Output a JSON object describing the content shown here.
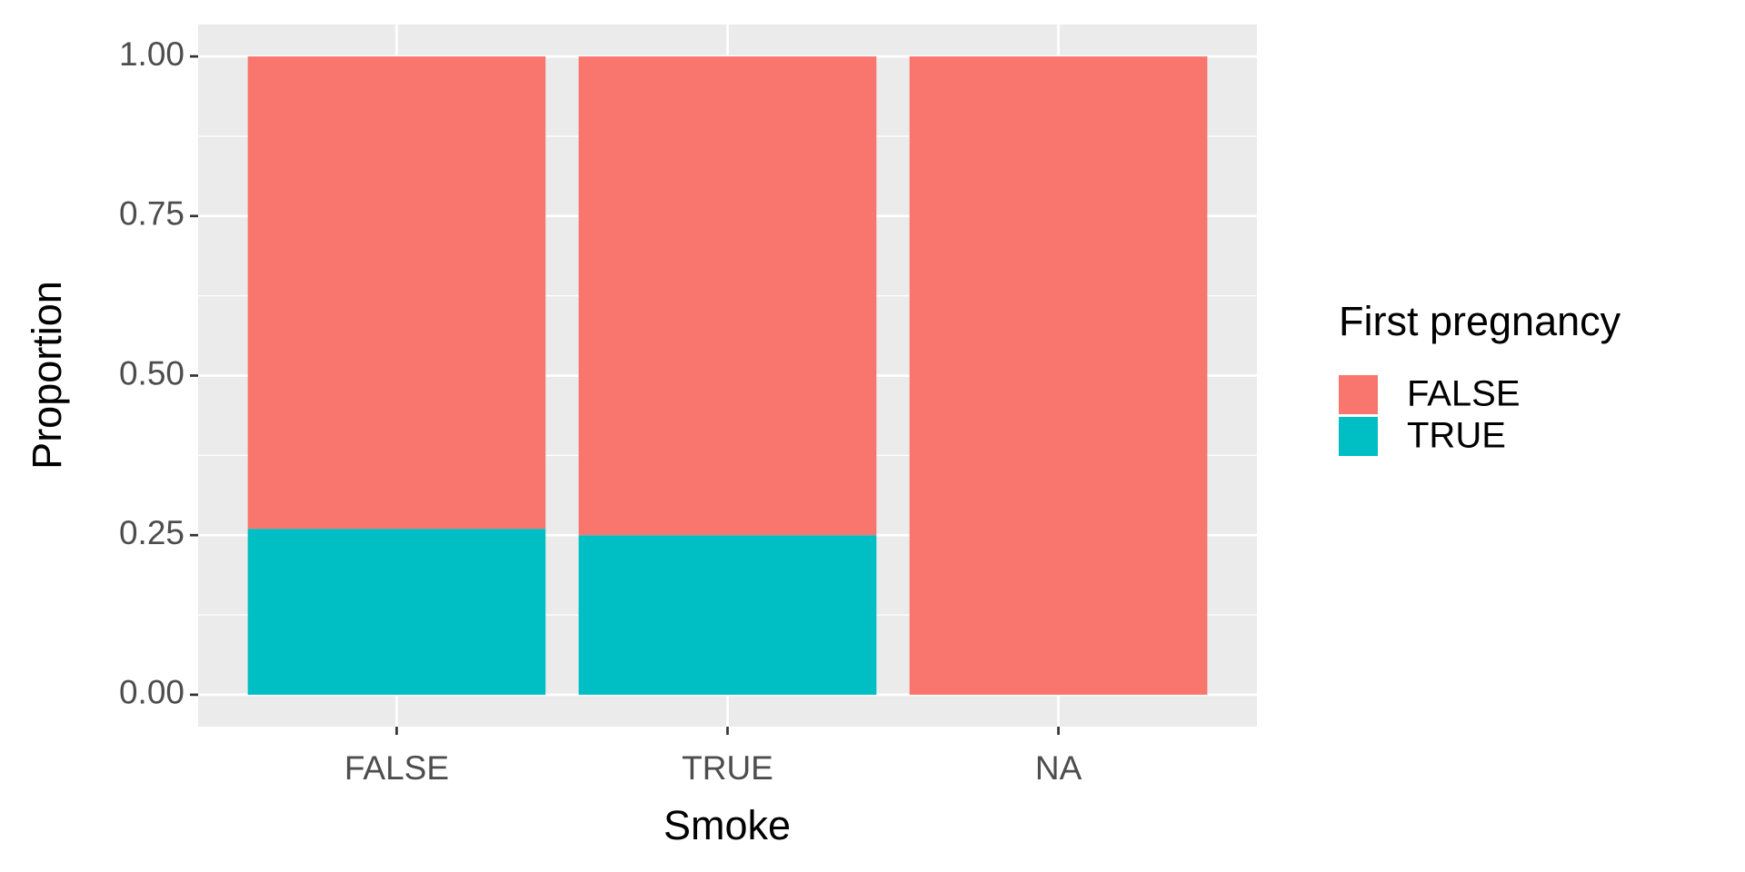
{
  "chart_data": {
    "type": "stacked_bar",
    "x_label": "Smoke",
    "y_label": "Proportion",
    "categories": [
      "FALSE",
      "TRUE",
      "NA"
    ],
    "series": [
      {
        "name": "FALSE",
        "color": "#F8766D",
        "values": [
          0.74,
          0.75,
          1.0
        ]
      },
      {
        "name": "TRUE",
        "color": "#00BFC4",
        "values": [
          0.26,
          0.25,
          0
        ]
      }
    ],
    "legend_title": "First pregnancy",
    "legend_position": "right",
    "ylim": [
      -0.05,
      1.05
    ],
    "yticks": [
      {
        "value": 0,
        "label": "0.00"
      },
      {
        "value": 0.25,
        "label": "0.25"
      },
      {
        "value": 0.5,
        "label": "0.50"
      },
      {
        "value": 0.75,
        "label": "0.75"
      },
      {
        "value": 1,
        "label": "1.00"
      }
    ],
    "grid": true
  }
}
